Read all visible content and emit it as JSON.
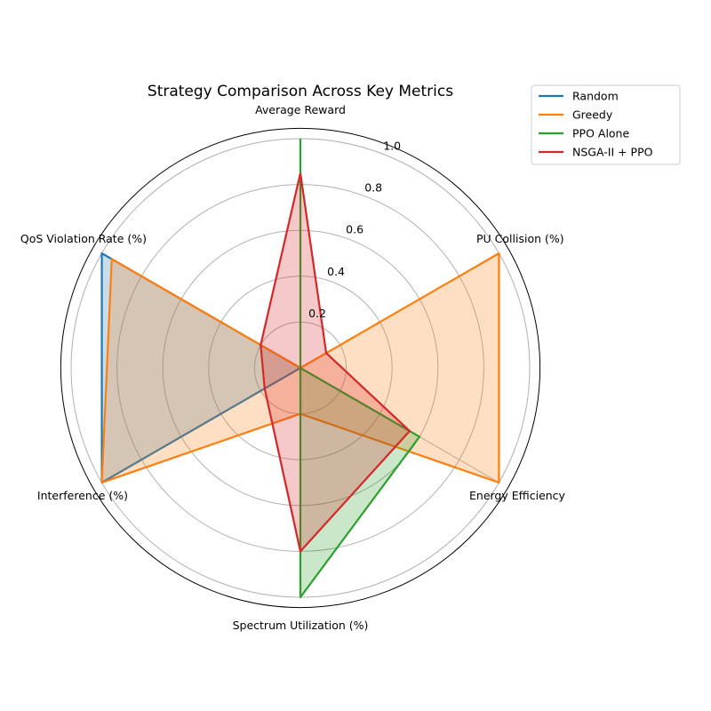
{
  "chart_data": {
    "type": "radar",
    "title": "Strategy Comparison Across Key Metrics",
    "axes": [
      "Average Reward",
      "PU Collision (%)",
      "Energy Efficiency",
      "Spectrum Utilization (%)",
      "Interference (%)",
      "QoS Violation Rate (%)"
    ],
    "rlim": [
      0,
      1.0
    ],
    "ticks": [
      "0.2",
      "0.4",
      "0.6",
      "0.8",
      "1.0"
    ],
    "tick_values": [
      0.2,
      0.4,
      0.6,
      0.8,
      1.0
    ],
    "grid": true,
    "legend_position": "top-right",
    "series": [
      {
        "name": "Random",
        "color": "#1f77b4",
        "values": [
          0.0,
          0.0,
          0.0,
          0.0,
          1.0,
          1.0
        ]
      },
      {
        "name": "Greedy",
        "color": "#ff7f0e",
        "values": [
          0.0,
          1.0,
          1.0,
          0.2,
          1.0,
          0.95
        ]
      },
      {
        "name": "PPO Alone",
        "color": "#2ca02c",
        "values": [
          1.0,
          0.0,
          0.6,
          1.0,
          0.0,
          0.0
        ]
      },
      {
        "name": "NSGA-II + PPO",
        "color": "#d62728",
        "values": [
          0.85,
          0.13,
          0.55,
          0.8,
          0.18,
          0.2
        ]
      }
    ]
  }
}
